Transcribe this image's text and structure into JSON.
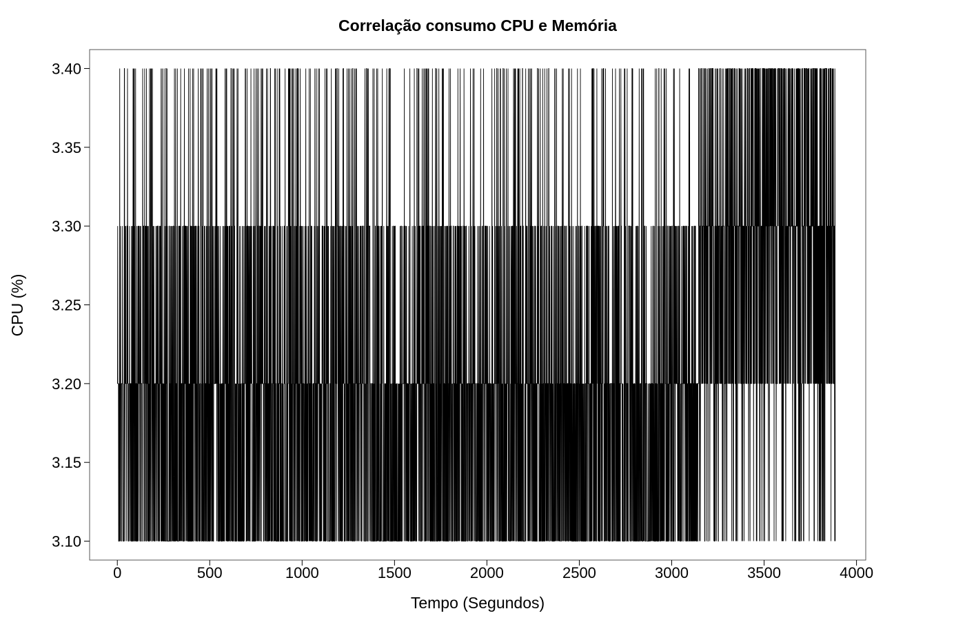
{
  "chart_data": {
    "type": "line",
    "title": "Correlação consumo CPU e Memória",
    "xlabel": "Tempo (Segundos)",
    "ylabel": "CPU (%)",
    "xlim": [
      -150,
      4050
    ],
    "ylim": [
      3.088,
      3.412
    ],
    "x_ticks": [
      0,
      500,
      1000,
      1500,
      2000,
      2500,
      3000,
      3500,
      4000
    ],
    "x_tick_labels": [
      "0",
      "500",
      "1000",
      "1500",
      "2000",
      "2500",
      "3000",
      "3500",
      "4000"
    ],
    "y_ticks": [
      3.1,
      3.15,
      3.2,
      3.25,
      3.3,
      3.35,
      3.4
    ],
    "y_tick_labels": [
      "3.10",
      "3.15",
      "3.20",
      "3.25",
      "3.30",
      "3.35",
      "3.40"
    ],
    "grid": false,
    "legend": "none",
    "line_color": "#000000",
    "series": [
      {
        "x_start": 1,
        "x_end": 3885,
        "x_step": 1,
        "levels": [
          3.1,
          3.2,
          3.3,
          3.4
        ],
        "segments": [
          {
            "x_from": 1,
            "x_to": 3145,
            "values_by_share": {
              "3.10": 0.4,
              "3.20": 0.3,
              "3.30": 0.22,
              "3.40": 0.08
            }
          },
          {
            "x_from": 3146,
            "x_to": 3885,
            "values_by_share": {
              "3.10": 0.1,
              "3.20": 0.25,
              "3.30": 0.35,
              "3.40": 0.3
            }
          }
        ]
      }
    ]
  }
}
